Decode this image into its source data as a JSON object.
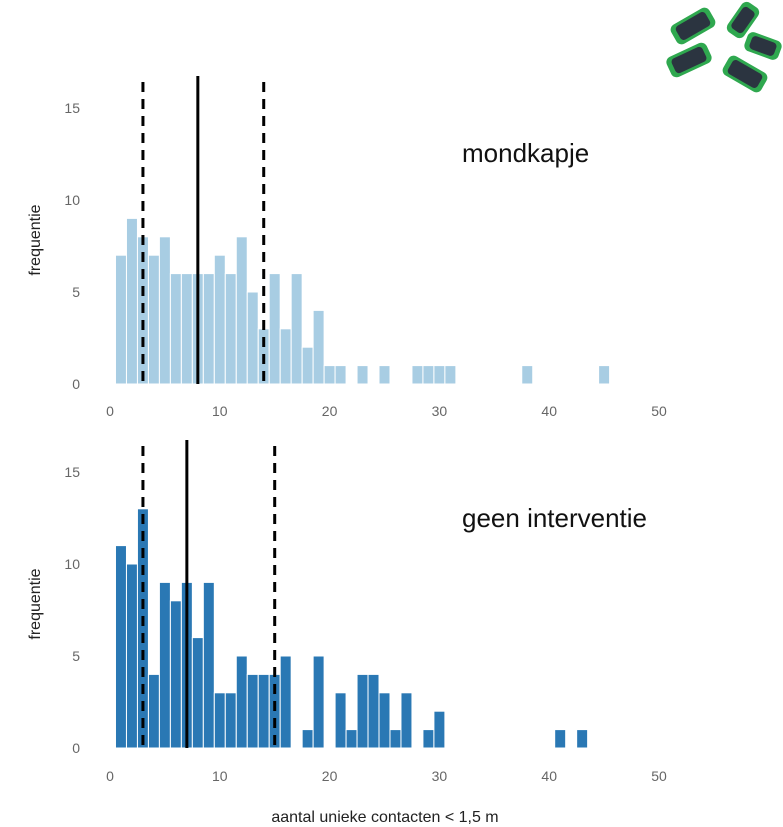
{
  "xlabel": "aantal unieke contacten < 1,5 m",
  "device_image": "green-wearable-sensors-icon",
  "chart_data": [
    {
      "type": "bar",
      "title": "mondkapje",
      "ylabel": "frequentie",
      "color": "#a8cde3",
      "xlim": [
        0,
        50
      ],
      "ylim": [
        0,
        15
      ],
      "xticks": [
        0,
        10,
        20,
        30,
        40,
        50
      ],
      "yticks": [
        0,
        5,
        10,
        15
      ],
      "bin_width": 1,
      "x": [
        1,
        2,
        3,
        4,
        5,
        6,
        7,
        8,
        9,
        10,
        11,
        12,
        13,
        14,
        15,
        16,
        17,
        18,
        19,
        20,
        21,
        22,
        23,
        24,
        25,
        26,
        27,
        28,
        29,
        30,
        31,
        32,
        33,
        34,
        35,
        36,
        37,
        38,
        39,
        40,
        41,
        42,
        43,
        44,
        45
      ],
      "values": [
        7,
        9,
        8,
        7,
        8,
        6,
        6,
        6,
        6,
        7,
        6,
        8,
        5,
        3,
        6,
        3,
        6,
        2,
        4,
        1,
        1,
        0,
        1,
        0,
        1,
        0,
        0,
        1,
        1,
        1,
        1,
        0,
        0,
        0,
        0,
        0,
        0,
        1,
        0,
        0,
        0,
        0,
        0,
        0,
        1
      ],
      "lines": {
        "median": 8,
        "lower": 3,
        "upper": 14
      }
    },
    {
      "type": "bar",
      "title": "geen interventie",
      "ylabel": "frequentie",
      "color": "#2a78b4",
      "xlim": [
        0,
        50
      ],
      "ylim": [
        0,
        15
      ],
      "xticks": [
        0,
        10,
        20,
        30,
        40,
        50
      ],
      "yticks": [
        0,
        5,
        10,
        15
      ],
      "bin_width": 1,
      "x": [
        1,
        2,
        3,
        4,
        5,
        6,
        7,
        8,
        9,
        10,
        11,
        12,
        13,
        14,
        15,
        16,
        17,
        18,
        19,
        20,
        21,
        22,
        23,
        24,
        25,
        26,
        27,
        28,
        29,
        30,
        31,
        32,
        33,
        34,
        35,
        36,
        37,
        38,
        39,
        40,
        41,
        42,
        43
      ],
      "values": [
        11,
        10,
        13,
        4,
        9,
        8,
        9,
        6,
        9,
        3,
        3,
        5,
        4,
        4,
        4,
        5,
        0,
        1,
        5,
        0,
        3,
        1,
        4,
        4,
        3,
        1,
        3,
        0,
        1,
        2,
        0,
        0,
        0,
        0,
        0,
        0,
        0,
        0,
        0,
        0,
        1,
        0,
        1
      ],
      "lines": {
        "median": 7,
        "lower": 3,
        "upper": 15
      }
    }
  ]
}
